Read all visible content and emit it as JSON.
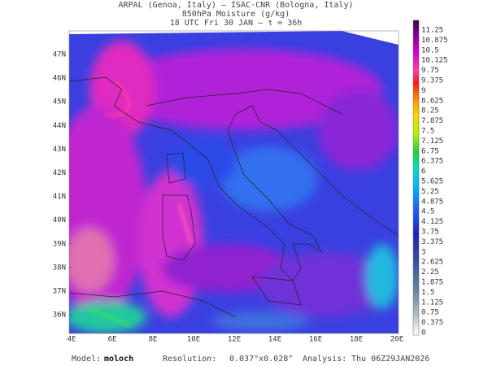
{
  "header": {
    "line1": "ARPAL (Genoa, Italy)  —  ISAC-CNR (Bologna, Italy)",
    "line2": "850hPa Moisture (g/kg)",
    "line3": "18 UTC Fri 30 JAN  —  τ = 36h"
  },
  "map": {
    "lat_labels": [
      "47N",
      "46N",
      "45N",
      "44N",
      "43N",
      "42N",
      "41N",
      "40N",
      "39N",
      "38N",
      "37N",
      "36N"
    ],
    "lon_labels": [
      "4E",
      "6E",
      "8E",
      "10E",
      "12E",
      "14E",
      "16E",
      "18E",
      "20E"
    ]
  },
  "colorbar": {
    "labels": [
      "11.25",
      "10.875",
      "10.5",
      "10.125",
      "9.75",
      "9.375",
      "9",
      "8.625",
      "8.25",
      "7.875",
      "7.5",
      "7.125",
      "6.75",
      "6.375",
      "6",
      "5.625",
      "5.25",
      "4.875",
      "4.5",
      "4.125",
      "3.75",
      "3.375",
      "3",
      "2.625",
      "2.25",
      "1.875",
      "1.5",
      "1.125",
      "0.75",
      "0.375",
      "0"
    ]
  },
  "footer": {
    "model_label": "Model:",
    "model": "moloch",
    "resolution_label": "Resolution:",
    "resolution": "0.037°x0.028°",
    "analysis_label": "Analysis:",
    "analysis": "Thu 06Z29JAN2026"
  }
}
